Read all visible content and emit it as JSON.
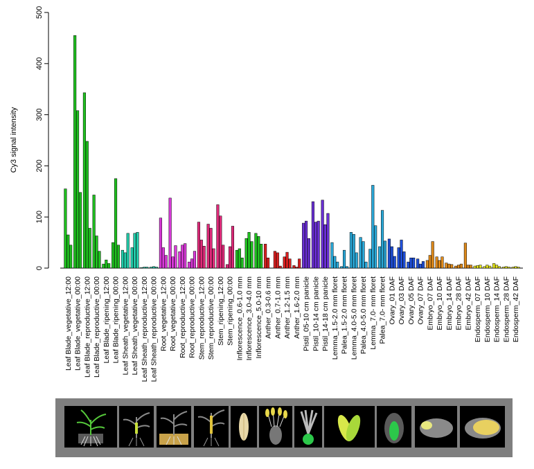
{
  "chart_data": {
    "type": "bar",
    "ylabel": "Cy3 signal intensity",
    "xlabel": "",
    "ylim": [
      0,
      500
    ],
    "yticks": [
      "0",
      "100",
      "200",
      "300",
      "400",
      "500"
    ],
    "grid": false,
    "legend": "none",
    "groups": [
      {
        "label": "Leaf Blade_vegetative_12:00",
        "color": "#1fc11f",
        "values": [
          155,
          65,
          45
        ]
      },
      {
        "label": "Leaf Blade_vegetative_00:00",
        "color": "#1fc11f",
        "values": [
          455,
          308,
          148
        ]
      },
      {
        "label": "Leaf Blade_reproductive_12:00",
        "color": "#1fc11f",
        "values": [
          343,
          248,
          78
        ]
      },
      {
        "label": "Leaf Blade_reproductive_00:00",
        "color": "#1fc11f",
        "values": [
          143,
          63,
          33
        ]
      },
      {
        "label": "Leaf Blade_ripening_12:00",
        "color": "#1fc11f",
        "values": [
          8,
          16,
          9
        ]
      },
      {
        "label": "Leaf Blade_ripening_00:00",
        "color": "#1fc11f",
        "values": [
          50,
          175,
          45
        ]
      },
      {
        "label": "Leaf Sheath_vegetative_12:00",
        "color": "#22ccaa",
        "values": [
          35,
          30,
          68
        ]
      },
      {
        "label": "Leaf Sheath_vegetative_00:00",
        "color": "#22ccaa",
        "values": [
          40,
          68,
          70
        ]
      },
      {
        "label": "Leaf Sheath_reproductive_12:00",
        "color": "#22ccaa",
        "values": [
          1,
          2,
          2
        ]
      },
      {
        "label": "Leaf Sheath_reproductive_00:00",
        "color": "#22ccaa",
        "values": [
          2,
          3,
          2
        ]
      },
      {
        "label": "Root_vegetative_12:00",
        "color": "#d93ad9",
        "values": [
          98,
          40,
          25
        ]
      },
      {
        "label": "Root_vegetative_00:00",
        "color": "#d93ad9",
        "values": [
          137,
          22,
          44
        ]
      },
      {
        "label": "Root_reproductive_12:00",
        "color": "#d93ad9",
        "values": [
          32,
          45,
          48
        ]
      },
      {
        "label": "Root_reproductive_00:00",
        "color": "#d93ad9",
        "values": [
          12,
          18,
          33
        ]
      },
      {
        "label": "Stem_reproductive_12:00",
        "color": "#e02a7a",
        "values": [
          90,
          55,
          43
        ]
      },
      {
        "label": "Stem_reproductive_00:00",
        "color": "#e02a7a",
        "values": [
          86,
          78,
          38
        ]
      },
      {
        "label": "Stem_ripening_12:00",
        "color": "#e02a7a",
        "values": [
          124,
          102,
          45
        ]
      },
      {
        "label": "Stem_ripening_00:00",
        "color": "#e02a7a",
        "values": [
          7,
          42,
          82
        ]
      },
      {
        "label": "Inflorescence_0.6-1.0 mm",
        "color": "#20c020",
        "values": [
          35,
          38,
          20
        ]
      },
      {
        "label": "Inflorescence_3.0-4.0 mm",
        "color": "#20c020",
        "values": [
          58,
          70,
          52
        ]
      },
      {
        "label": "Inflorescence_5.0-10 mm",
        "color": "#20c020",
        "values": [
          68,
          62,
          47
        ]
      },
      {
        "label": "Anther_0.3-0.6 mm",
        "color": "#d91f1f",
        "values": [
          47,
          20,
          0
        ]
      },
      {
        "label": "Anther_0.7-1.0 mm",
        "color": "#d91f1f",
        "values": [
          33,
          30,
          4
        ]
      },
      {
        "label": "Anther_1.2-1.5 mm",
        "color": "#d91f1f",
        "values": [
          22,
          31,
          18
        ]
      },
      {
        "label": "Anther_1.6-2.0 mm",
        "color": "#d91f1f",
        "values": [
          5,
          2,
          18
        ]
      },
      {
        "label": "Pistil_05-10 cm panicle",
        "color": "#6a2fd6",
        "values": [
          88,
          92,
          58
        ]
      },
      {
        "label": "Pistil_10-14 cm panicle",
        "color": "#6a2fd6",
        "values": [
          130,
          90,
          92
        ]
      },
      {
        "label": "Pistil_14-18 cm panicle",
        "color": "#6a2fd6",
        "values": [
          133,
          85,
          107
        ]
      },
      {
        "label": "Lemma_1.5-2.0 mm floret",
        "color": "#2aa8d8",
        "values": [
          50,
          23,
          12
        ]
      },
      {
        "label": "Palea_1.5-2.0 mm floret",
        "color": "#2aa8d8",
        "values": [
          3,
          35,
          3
        ]
      },
      {
        "label": "Lemma_4.0-5.0 mm floret",
        "color": "#2aa8d8",
        "values": [
          70,
          66,
          30
        ]
      },
      {
        "label": "Palea_4.0-5.0 mm floret",
        "color": "#2aa8d8",
        "values": [
          60,
          52,
          12
        ]
      },
      {
        "label": "Lemma_7.0- mm floret",
        "color": "#2aa8d8",
        "values": [
          37,
          162,
          83
        ]
      },
      {
        "label": "Palea_7.0- mm floret",
        "color": "#2aa8d8",
        "values": [
          42,
          113,
          53
        ]
      },
      {
        "label": "Ovary_01 DAF",
        "color": "#1f4fd9",
        "values": [
          57,
          42,
          23
        ]
      },
      {
        "label": "Ovary_03 DAF",
        "color": "#1f4fd9",
        "values": [
          40,
          55,
          32
        ]
      },
      {
        "label": "Ovary_05 DAF",
        "color": "#1f4fd9",
        "values": [
          12,
          20,
          20
        ]
      },
      {
        "label": "Ovary_07 DAF",
        "color": "#1f4fd9",
        "values": [
          18,
          8,
          13
        ]
      },
      {
        "label": "Embryo_07 DAF",
        "color": "#e08a1a",
        "values": [
          15,
          25,
          52
        ]
      },
      {
        "label": "Embryo_10 DAF",
        "color": "#e08a1a",
        "values": [
          22,
          15,
          22
        ]
      },
      {
        "label": "Embryo_14 DAF",
        "color": "#e08a1a",
        "values": [
          10,
          8,
          7
        ]
      },
      {
        "label": "Embryo_28 DAF",
        "color": "#e08a1a",
        "values": [
          4,
          6,
          8
        ]
      },
      {
        "label": "Embryo_42 DAF",
        "color": "#e08a1a",
        "values": [
          49,
          6,
          6
        ]
      },
      {
        "label": "Endosperm_07 DAF",
        "color": "#e8e81e",
        "values": [
          4,
          5,
          6
        ]
      },
      {
        "label": "Endosperm_10 DAF",
        "color": "#e8e81e",
        "values": [
          3,
          6,
          4
        ]
      },
      {
        "label": "Endosperm_14 DAF",
        "color": "#e8e81e",
        "values": [
          9,
          6,
          3
        ]
      },
      {
        "label": "Endosperm_28 DAF",
        "color": "#e8e81e",
        "values": [
          2,
          3,
          2
        ]
      },
      {
        "label": "Endosperm_42 DAF",
        "color": "#e8e81e",
        "values": [
          2,
          3,
          2
        ]
      }
    ]
  },
  "tissue_strip": {
    "background": "#7f7f7f",
    "tiles": [
      {
        "icon": "seedling-vegetative-icon"
      },
      {
        "icon": "plant-vegetative-dark-icon"
      },
      {
        "icon": "plant-reproductive-icon"
      },
      {
        "icon": "plant-ripening-icon"
      },
      {
        "icon": "inflorescence-icon"
      },
      {
        "icon": "anther-icon"
      },
      {
        "icon": "pistil-icon"
      },
      {
        "icon": "lemma-palea-icon"
      },
      {
        "icon": "ovary-icon"
      },
      {
        "icon": "embryo-icon"
      },
      {
        "icon": "endosperm-icon"
      }
    ]
  }
}
